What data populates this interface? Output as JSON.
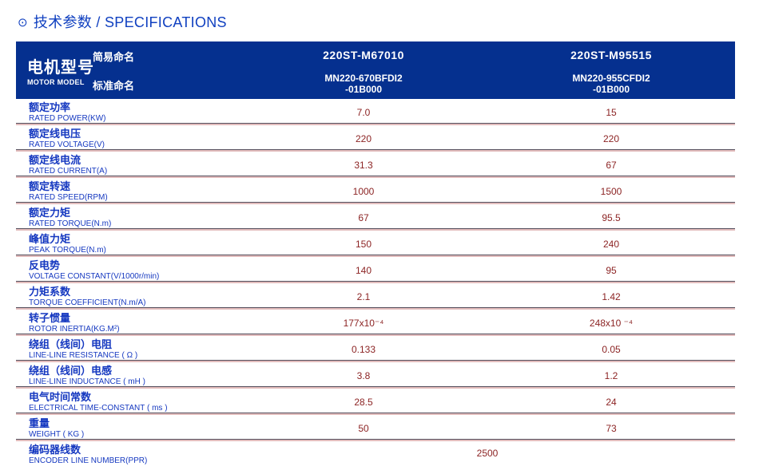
{
  "page_title": {
    "icon": "⊙",
    "text": "技术参数 / SPECIFICATIONS"
  },
  "colors": {
    "accent_blue": "#1040c0",
    "header_bg": "#05308f",
    "label_blue": "#1538c0",
    "value_red": "#8c2424",
    "divider_dark": "#55505e",
    "divider_light": "#e2bcbc"
  },
  "table": {
    "header": {
      "model_label_cn": "电机型号",
      "model_label_en": "MOTOR MODEL",
      "simple_name_label": "简易命名",
      "standard_name_label": "标准命名",
      "models": [
        {
          "simple_name": "220ST-M67010",
          "standard_name_line1": "MN220-670BFDI2",
          "standard_name_line2": "-01B000"
        },
        {
          "simple_name": "220ST-M95515",
          "standard_name_line1": "MN220-955CFDI2",
          "standard_name_line2": "-01B000"
        }
      ]
    },
    "rows": [
      {
        "cn": "额定功率",
        "en": "RATED POWER(KW)",
        "v1": "7.0",
        "v2": "15"
      },
      {
        "cn": "额定线电压",
        "en": "RATED VOLTAGE(V)",
        "v1": "220",
        "v2": "220"
      },
      {
        "cn": "额定线电流",
        "en": "RATED CURRENT(A)",
        "v1": "31.3",
        "v2": "67"
      },
      {
        "cn": "额定转速",
        "en": "RATED SPEED(RPM)",
        "v1": "1000",
        "v2": "1500"
      },
      {
        "cn": "额定力矩",
        "en": "RATED TORQUE(N.m)",
        "v1": "67",
        "v2": "95.5"
      },
      {
        "cn": "峰值力矩",
        "en": "PEAK TORQUE(N.m)",
        "v1": "150",
        "v2": "240"
      },
      {
        "cn": "反电势",
        "en": "VOLTAGE CONSTANT(V/1000r/min)",
        "v1": "140",
        "v2": "95"
      },
      {
        "cn": "力矩系数",
        "en": "TORQUE COEFFICIENT(N.m/A)",
        "v1": "2.1",
        "v2": "1.42"
      },
      {
        "cn": "转子惯量",
        "en": "ROTOR INERTIA(KG.M²)",
        "v1": "177x10⁻⁴",
        "v2": "248x10 ⁻⁴"
      },
      {
        "cn": "绕组（线间）电阻",
        "en": "LINE-LINE RESISTANCE ( Ω )",
        "v1": "0.133",
        "v2": "0.05"
      },
      {
        "cn": "绕组（线间）电感",
        "en": "LINE-LINE INDUCTANCE ( mH )",
        "v1": "3.8",
        "v2": "1.2"
      },
      {
        "cn": "电气时间常数",
        "en": "ELECTRICAL TIME-CONSTANT ( ms )",
        "v1": "28.5",
        "v2": "24"
      },
      {
        "cn": "重量",
        "en": "WEIGHT ( KG )",
        "v1": "50",
        "v2": "73"
      },
      {
        "cn": "编码器线数",
        "en": "ENCODER LINE NUMBER(PPR)",
        "span_value": "2500"
      }
    ]
  }
}
